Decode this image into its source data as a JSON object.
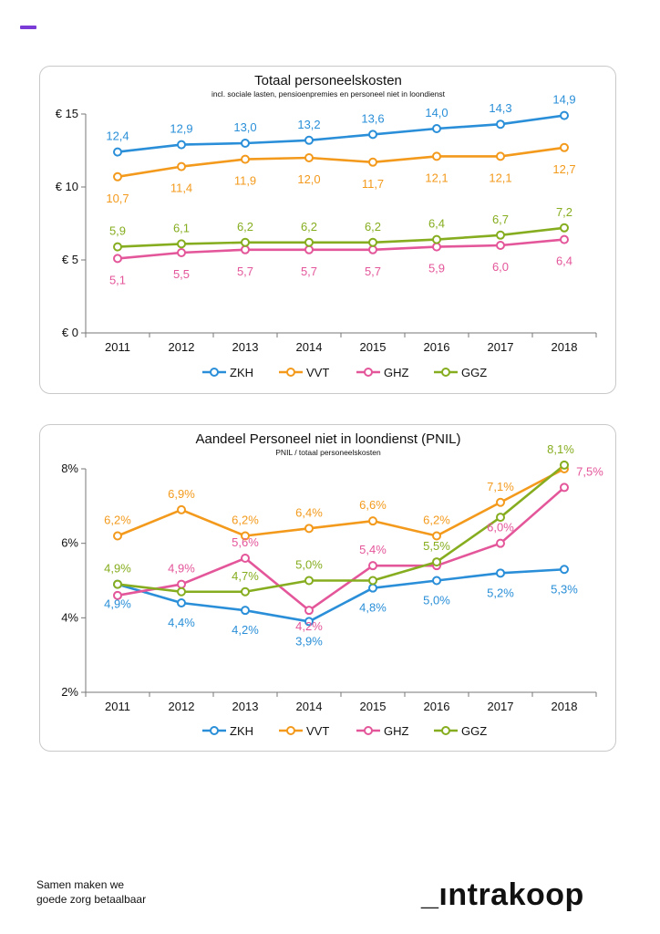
{
  "brand": {
    "tagline_1": "Samen maken we",
    "tagline_2": "goede zorg betaalbaar",
    "logo": "_ıntrakoop",
    "accent_color": "#7a3bd6"
  },
  "chart_data": [
    {
      "type": "line",
      "title": "Totaal personeelskosten",
      "subtitle": "incl. sociale lasten, pensioenpremies en personeel niet in loondienst",
      "categories": [
        "2011",
        "2012",
        "2013",
        "2014",
        "2015",
        "2016",
        "2017",
        "2018"
      ],
      "y_ticks": [
        "€ 0",
        "€ 5",
        "€ 10",
        "€ 15"
      ],
      "ylim": [
        0,
        15
      ],
      "legend_position": "bottom",
      "grid": false,
      "series": [
        {
          "name": "ZKH",
          "color": "#2a8fd8",
          "values": [
            12.4,
            12.9,
            13.0,
            13.2,
            13.6,
            14.0,
            14.3,
            14.9
          ],
          "labels": [
            "12,4",
            "12,9",
            "13,0",
            "13,2",
            "13,6",
            "14,0",
            "14,3",
            "14,9"
          ]
        },
        {
          "name": "VVT",
          "color": "#f39a1d",
          "values": [
            10.7,
            11.4,
            11.9,
            12.0,
            11.7,
            12.1,
            12.1,
            12.7
          ],
          "labels": [
            "10,7",
            "11,4",
            "11,9",
            "12,0",
            "11,7",
            "12,1",
            "12,1",
            "12,7"
          ]
        },
        {
          "name": "GHZ",
          "color": "#e4569a",
          "values": [
            5.1,
            5.5,
            5.7,
            5.7,
            5.7,
            5.9,
            6.0,
            6.4
          ],
          "labels": [
            "5,1",
            "5,5",
            "5,7",
            "5,7",
            "5,7",
            "5,9",
            "6,0",
            "6,4"
          ]
        },
        {
          "name": "GGZ",
          "color": "#86ad1f",
          "values": [
            5.9,
            6.1,
            6.2,
            6.2,
            6.2,
            6.4,
            6.7,
            7.2
          ],
          "labels": [
            "5,9",
            "6,1",
            "6,2",
            "6,2",
            "6,2",
            "6,4",
            "6,7",
            "7,2"
          ]
        }
      ]
    },
    {
      "type": "line",
      "title": "Aandeel Personeel niet in loondienst (PNIL)",
      "subtitle": "PNIL / totaal personeelskosten",
      "categories": [
        "2011",
        "2012",
        "2013",
        "2014",
        "2015",
        "2016",
        "2017",
        "2018"
      ],
      "y_ticks": [
        "2%",
        "4%",
        "6%",
        "8%"
      ],
      "ylim": [
        2,
        8
      ],
      "legend_position": "bottom",
      "grid": false,
      "series": [
        {
          "name": "ZKH",
          "color": "#2a8fd8",
          "values": [
            4.9,
            4.4,
            4.2,
            3.9,
            4.8,
            5.0,
            5.2,
            5.3
          ],
          "labels": [
            "4,9%",
            "4,4%",
            "4,2%",
            "3,9%",
            "4,8%",
            "5,0%",
            "5,2%",
            "5,3%"
          ]
        },
        {
          "name": "VVT",
          "color": "#f39a1d",
          "values": [
            6.2,
            6.9,
            6.2,
            6.4,
            6.6,
            6.2,
            7.1,
            8.0
          ],
          "labels": [
            "6,2%",
            "6,9%",
            "6,2%",
            "6,4%",
            "6,6%",
            "6,2%",
            "7,1%",
            ""
          ]
        },
        {
          "name": "GHZ",
          "color": "#e4569a",
          "values": [
            4.6,
            4.9,
            5.6,
            4.2,
            5.4,
            5.4,
            6.0,
            7.5
          ],
          "labels": [
            "",
            "4,9%",
            "5,6%",
            "4,2%",
            "5,4%",
            "",
            "6,0%",
            "7,5%"
          ]
        },
        {
          "name": "GGZ",
          "color": "#86ad1f",
          "values": [
            4.9,
            4.7,
            4.7,
            5.0,
            5.0,
            5.5,
            6.7,
            8.1
          ],
          "labels": [
            "4,9%",
            "",
            "4,7%",
            "5,0%",
            "",
            "5,5%",
            "",
            "8,1%"
          ]
        }
      ]
    }
  ]
}
